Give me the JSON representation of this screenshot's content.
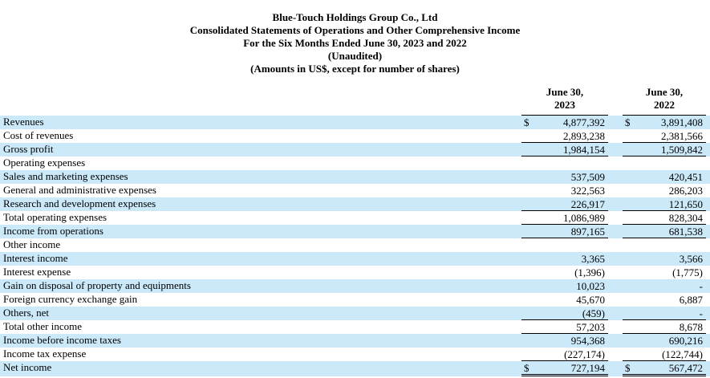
{
  "document": {
    "title_lines": [
      "Blue-Touch Holdings Group Co., Ltd",
      "Consolidated Statements of Operations and Other Comprehensive Income",
      "For the Six Months Ended June 30, 2023 and 2022",
      "(Unaudited)",
      "(Amounts in US$, except for number of shares)"
    ]
  },
  "table": {
    "columns": [
      {
        "label_line1": "June 30,",
        "label_line2": "2023"
      },
      {
        "label_line1": "June 30,",
        "label_line2": "2022"
      }
    ],
    "rows": [
      {
        "label": "Revenues",
        "d23": "$",
        "v23": "4,877,392",
        "d22": "$",
        "v22": "3,891,408",
        "shade": true,
        "underline": "none"
      },
      {
        "label": "Cost of revenues",
        "d23": "",
        "v23": "2,893,238",
        "d22": "",
        "v22": "2,381,566",
        "shade": false,
        "underline": "single"
      },
      {
        "label": "Gross profit",
        "d23": "",
        "v23": "1,984,154",
        "d22": "",
        "v22": "1,509,842",
        "shade": true,
        "underline": "single"
      },
      {
        "label": "Operating expenses",
        "d23": "",
        "v23": "",
        "d22": "",
        "v22": "",
        "shade": false,
        "underline": "none"
      },
      {
        "label": "Sales and marketing expenses",
        "d23": "",
        "v23": "537,509",
        "d22": "",
        "v22": "420,451",
        "shade": true,
        "underline": "none"
      },
      {
        "label": "General and administrative expenses",
        "d23": "",
        "v23": "322,563",
        "d22": "",
        "v22": "286,203",
        "shade": false,
        "underline": "none"
      },
      {
        "label": "Research and development expenses",
        "d23": "",
        "v23": "226,917",
        "d22": "",
        "v22": "121,650",
        "shade": true,
        "underline": "single"
      },
      {
        "label": "Total operating expenses",
        "d23": "",
        "v23": "1,086,989",
        "d22": "",
        "v22": "828,304",
        "shade": false,
        "underline": "single"
      },
      {
        "label": "Income from operations",
        "d23": "",
        "v23": "897,165",
        "d22": "",
        "v22": "681,538",
        "shade": true,
        "underline": "single"
      },
      {
        "label": "Other income",
        "d23": "",
        "v23": "",
        "d22": "",
        "v22": "",
        "shade": false,
        "underline": "none"
      },
      {
        "label": "Interest income",
        "d23": "",
        "v23": "3,365",
        "d22": "",
        "v22": "3,566",
        "shade": true,
        "underline": "none"
      },
      {
        "label": "Interest expense",
        "d23": "",
        "v23": "(1,396)",
        "d22": "",
        "v22": "(1,775)",
        "shade": false,
        "underline": "none"
      },
      {
        "label": "Gain on disposal of property and equipments",
        "d23": "",
        "v23": "10,023",
        "d22": "",
        "v22": "-",
        "shade": true,
        "underline": "none"
      },
      {
        "label": "Foreign currency exchange gain",
        "d23": "",
        "v23": "45,670",
        "d22": "",
        "v22": "6,887",
        "shade": false,
        "underline": "none"
      },
      {
        "label": "Others, net",
        "d23": "",
        "v23": "(459)",
        "d22": "",
        "v22": "-",
        "shade": true,
        "underline": "single"
      },
      {
        "label": "Total other income",
        "d23": "",
        "v23": "57,203",
        "d22": "",
        "v22": "8,678",
        "shade": false,
        "underline": "single"
      },
      {
        "label": "Income before income taxes",
        "d23": "",
        "v23": "954,368",
        "d22": "",
        "v22": "690,216",
        "shade": true,
        "underline": "none"
      },
      {
        "label": "Income tax expense",
        "d23": "",
        "v23": "(227,174)",
        "d22": "",
        "v22": "(122,744)",
        "shade": false,
        "underline": "single"
      },
      {
        "label": "Net income",
        "d23": "$",
        "v23": "727,194",
        "d22": "$",
        "v22": "567,472",
        "shade": true,
        "underline": "double"
      }
    ]
  },
  "colors": {
    "row_shade": "#cbe9f9",
    "text": "#000000",
    "border": "#000000",
    "background": "#ffffff"
  }
}
